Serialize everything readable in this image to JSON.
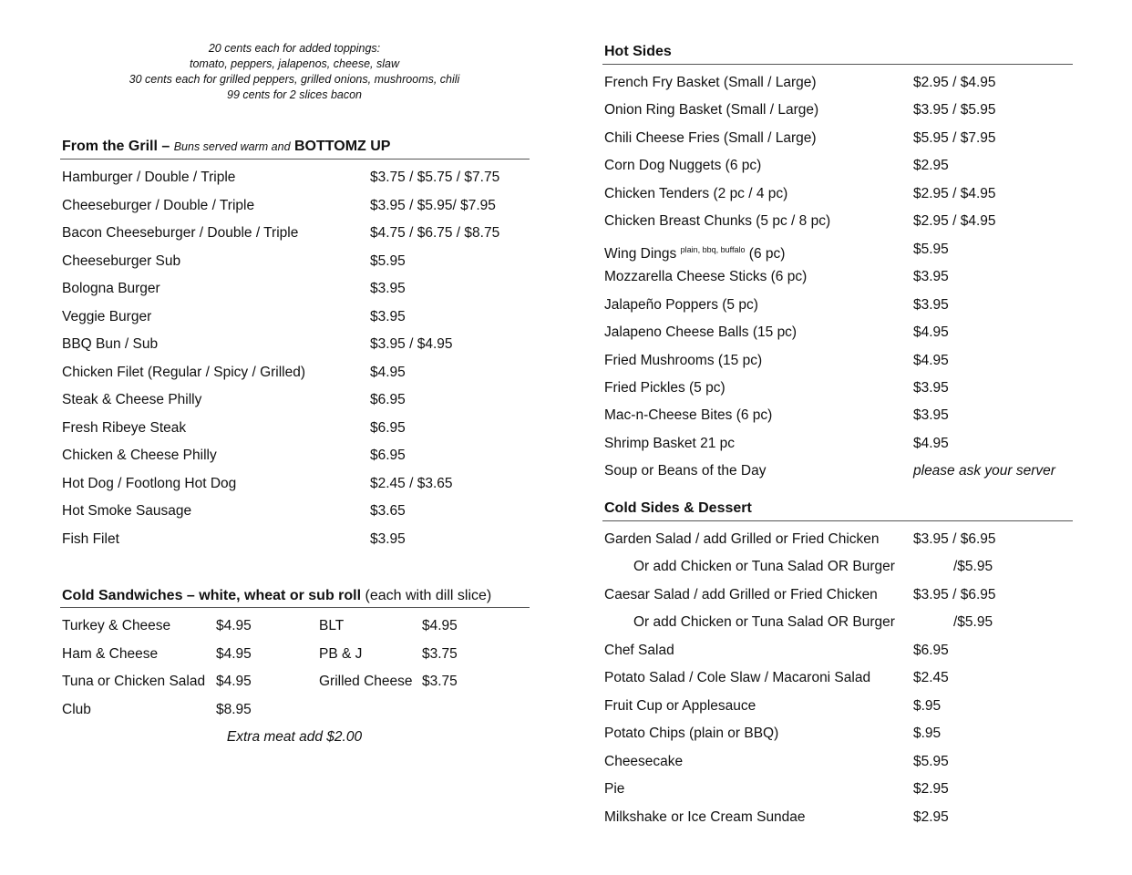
{
  "toppings_note": [
    "20 cents each for added toppings:",
    "tomato, peppers, jalapenos, cheese, slaw",
    "30 cents each for grilled peppers, grilled onions, mushrooms, chili",
    "99 cents for 2 slices bacon"
  ],
  "grill": {
    "title": "From the Grill –",
    "subtitle": "Buns served warm and",
    "emphasis": "BOTTOMZ UP",
    "items": [
      {
        "name": "Hamburger / Double / Triple",
        "price": "$3.75 / $5.75 / $7.75"
      },
      {
        "name": "Cheeseburger / Double / Triple",
        "price": "$3.95 / $5.95/ $7.95"
      },
      {
        "name": "Bacon Cheeseburger / Double / Triple",
        "price": "$4.75 / $6.75 / $8.75"
      },
      {
        "name": "Cheeseburger Sub",
        "price": "$5.95"
      },
      {
        "name": "Bologna Burger",
        "price": "$3.95"
      },
      {
        "name": "Veggie Burger",
        "price": "$3.95"
      },
      {
        "name": "BBQ Bun / Sub",
        "price": "$3.95 / $4.95"
      },
      {
        "name": "Chicken Filet (Regular / Spicy / Grilled)",
        "price": "$4.95"
      },
      {
        "name": "Steak & Cheese Philly",
        "price": "$6.95"
      },
      {
        "name": "Fresh Ribeye Steak",
        "price": "$6.95"
      },
      {
        "name": "Chicken & Cheese Philly",
        "price": "$6.95"
      },
      {
        "name": "Hot Dog / Footlong Hot Dog",
        "price": "$2.45 / $3.65"
      },
      {
        "name": "Hot Smoke Sausage",
        "price": "$3.65"
      },
      {
        "name": "Fish Filet",
        "price": "$3.95"
      }
    ]
  },
  "cold_sandwiches": {
    "title": "Cold Sandwiches – white, wheat or sub roll",
    "subtitle": "(each with dill slice)",
    "left": [
      {
        "name": "Turkey & Cheese",
        "price": "$4.95"
      },
      {
        "name": "Ham & Cheese",
        "price": "$4.95"
      },
      {
        "name": "Tuna or Chicken Salad",
        "price": "$4.95"
      },
      {
        "name": "Club",
        "price": "$8.95"
      }
    ],
    "right": [
      {
        "name": "BLT",
        "price": "$4.95"
      },
      {
        "name": "PB & J",
        "price": "$3.75"
      },
      {
        "name": "Grilled Cheese",
        "price": "$3.75"
      }
    ],
    "footnote": "Extra meat add $2.00"
  },
  "hot_sides": {
    "title": "Hot Sides",
    "items": [
      {
        "name": "French Fry Basket (Small / Large)",
        "price": "$2.95 / $4.95"
      },
      {
        "name": "Onion Ring Basket (Small / Large)",
        "price": "$3.95 / $5.95"
      },
      {
        "name": "Chili Cheese Fries (Small / Large)",
        "price": "$5.95 / $7.95"
      },
      {
        "name": "Corn Dog Nuggets (6 pc)",
        "price": "$2.95"
      },
      {
        "name": "Chicken Tenders (2 pc / 4 pc)",
        "price": "$2.95 / $4.95"
      },
      {
        "name": "Chicken Breast Chunks (5 pc / 8 pc)",
        "price": "$2.95 / $4.95"
      },
      {
        "name": "Wing Dings",
        "flavors": "plain, bbq, buffalo",
        "suffix": "(6 pc)",
        "price": "$5.95"
      },
      {
        "name": "Mozzarella Cheese Sticks (6 pc)",
        "price": "$3.95"
      },
      {
        "name": "Jalapeño Poppers (5 pc)",
        "price": "$3.95"
      },
      {
        "name": "Jalapeno Cheese Balls (15 pc)",
        "price": "$4.95"
      },
      {
        "name": "Fried Mushrooms (15 pc)",
        "price": "$4.95"
      },
      {
        "name": "Fried Pickles (5 pc)",
        "price": "$3.95"
      },
      {
        "name": "Mac-n-Cheese Bites (6 pc)",
        "price": "$3.95"
      },
      {
        "name": "Shrimp Basket 21 pc",
        "price": "$4.95"
      },
      {
        "name": "Soup or Beans of the Day",
        "price": "please ask your server",
        "italic": true
      }
    ]
  },
  "cold_sides": {
    "title": "Cold Sides & Dessert",
    "items": [
      {
        "name": "Garden Salad / add Grilled or Fried Chicken",
        "price": "$3.95 / $6.95"
      },
      {
        "name": "Or add Chicken or Tuna Salad OR Burger",
        "price": "/$5.95",
        "indent": true
      },
      {
        "name": "Caesar Salad / add Grilled or Fried Chicken",
        "price": "$3.95 / $6.95"
      },
      {
        "name": "Or add Chicken or Tuna Salad OR Burger",
        "price": "/$5.95",
        "indent": true
      },
      {
        "name": "Chef Salad",
        "price": "$6.95"
      },
      {
        "name": "Potato Salad / Cole Slaw / Macaroni Salad",
        "price": "$2.45"
      },
      {
        "name": "Fruit Cup or Applesauce",
        "price": "$.95"
      },
      {
        "name": "Potato Chips (plain or BBQ)",
        "price": "$.95"
      },
      {
        "name": "Cheesecake",
        "price": "$5.95"
      },
      {
        "name": "Pie",
        "price": "$2.95"
      },
      {
        "name": "Milkshake or Ice Cream Sundae",
        "price": "$2.95"
      }
    ]
  }
}
